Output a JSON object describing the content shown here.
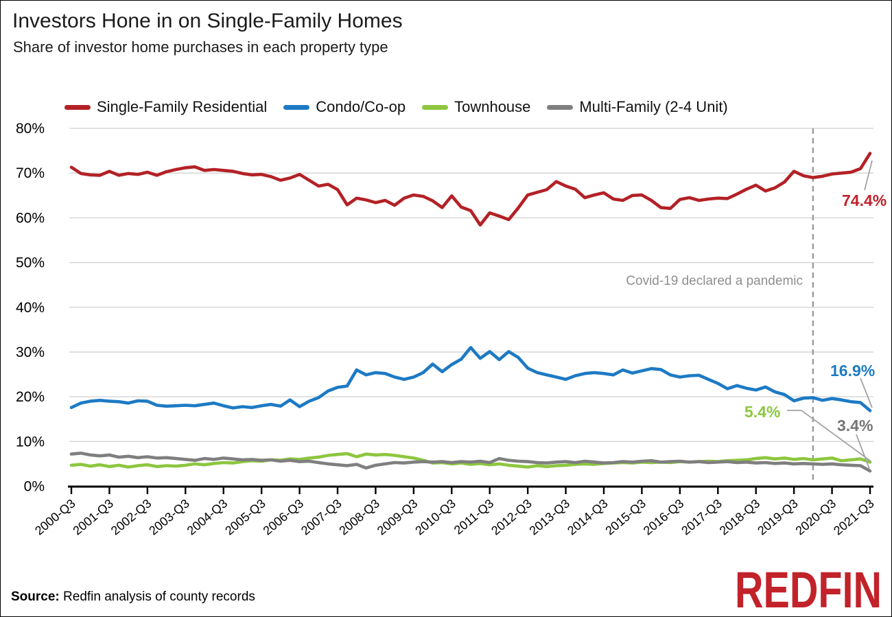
{
  "header": {
    "title": "Investors Hone in on Single-Family Homes",
    "subtitle": "Share of investor home purchases in each property type"
  },
  "chart_data": {
    "type": "line",
    "title": "Investors Hone in on Single-Family Homes",
    "subtitle": "Share of investor home purchases in each property type",
    "x_start": "2000-Q3",
    "x_end": "2021-Q3",
    "points_per_year": 4,
    "x_tick_labels": [
      "2000-Q3",
      "2001-Q3",
      "2002-Q3",
      "2003-Q3",
      "2004-Q3",
      "2005-Q3",
      "2006-Q3",
      "2007-Q3",
      "2008-Q3",
      "2009-Q3",
      "2010-Q3",
      "2011-Q3",
      "2012-Q3",
      "2013-Q3",
      "2014-Q3",
      "2015-Q3",
      "2016-Q3",
      "2017-Q3",
      "2018-Q3",
      "2019-Q3",
      "2020-Q3",
      "2021-Q3"
    ],
    "ylim": [
      0,
      80
    ],
    "y_tick_step": 10,
    "y_tick_labels": [
      "0%",
      "10%",
      "20%",
      "30%",
      "40%",
      "50%",
      "60%",
      "70%",
      "80%"
    ],
    "grid": "horizontal",
    "legend_position": "top",
    "series": [
      {
        "name": "Single-Family Residential",
        "color": "#b32126",
        "end_label": "74.4%",
        "end_label_color": "#c2222a",
        "values": [
          71.3,
          69.9,
          69.6,
          69.5,
          70.4,
          69.5,
          69.9,
          69.7,
          70.2,
          69.5,
          70.3,
          70.8,
          71.2,
          71.4,
          70.6,
          70.8,
          70.6,
          70.4,
          69.9,
          69.6,
          69.7,
          69.2,
          68.4,
          68.9,
          69.7,
          68.4,
          67.1,
          67.5,
          66.3,
          62.9,
          64.4,
          64.0,
          63.4,
          63.9,
          62.8,
          64.4,
          65.1,
          64.8,
          63.8,
          62.3,
          64.9,
          62.4,
          61.6,
          58.4,
          61.1,
          60.4,
          59.6,
          62.2,
          65.1,
          65.7,
          66.3,
          68.1,
          67.1,
          66.4,
          64.5,
          65.1,
          65.6,
          64.2,
          63.9,
          65.0,
          65.1,
          63.9,
          62.3,
          62.1,
          64.1,
          64.5,
          63.9,
          64.2,
          64.4,
          64.3,
          65.3,
          66.4,
          67.3,
          66.0,
          66.7,
          68.0,
          70.4,
          69.4,
          69.0,
          69.3,
          69.8,
          70.0,
          70.2,
          71.0,
          74.4
        ]
      },
      {
        "name": "Condo/Co-op",
        "color": "#1d7ac4",
        "end_label": "16.9%",
        "end_label_color": "#1d7ac4",
        "values": [
          17.6,
          18.6,
          19.0,
          19.2,
          19.0,
          18.9,
          18.6,
          19.1,
          19.0,
          18.1,
          17.9,
          18.0,
          18.1,
          18.0,
          18.3,
          18.6,
          18.0,
          17.5,
          17.8,
          17.6,
          18.0,
          18.3,
          17.9,
          19.3,
          17.8,
          19.0,
          19.8,
          21.3,
          22.1,
          22.4,
          26.0,
          24.9,
          25.4,
          25.2,
          24.4,
          23.9,
          24.4,
          25.4,
          27.3,
          25.6,
          27.2,
          28.4,
          31.0,
          28.6,
          30.1,
          28.3,
          30.1,
          28.8,
          26.4,
          25.4,
          24.9,
          24.4,
          23.9,
          24.7,
          25.2,
          25.4,
          25.2,
          24.9,
          26.0,
          25.3,
          25.8,
          26.3,
          26.1,
          24.9,
          24.4,
          24.7,
          24.8,
          23.9,
          23.0,
          21.8,
          22.5,
          21.9,
          21.5,
          22.2,
          21.1,
          20.5,
          19.1,
          19.7,
          19.8,
          19.2,
          19.6,
          19.3,
          18.9,
          18.7,
          16.9
        ]
      },
      {
        "name": "Townhouse",
        "color": "#8dc63f",
        "end_label": "5.4%",
        "end_label_color": "#8cc740",
        "values": [
          4.7,
          4.9,
          4.5,
          4.8,
          4.4,
          4.7,
          4.3,
          4.6,
          4.8,
          4.4,
          4.6,
          4.5,
          4.7,
          5.0,
          4.8,
          5.1,
          5.3,
          5.2,
          5.5,
          5.7,
          5.6,
          5.9,
          5.8,
          6.1,
          6.0,
          6.3,
          6.5,
          6.9,
          7.1,
          7.3,
          6.6,
          7.2,
          7.0,
          7.1,
          6.9,
          6.6,
          6.3,
          5.8,
          5.2,
          5.3,
          5.0,
          5.2,
          4.9,
          5.1,
          4.8,
          5.0,
          4.7,
          4.5,
          4.3,
          4.6,
          4.4,
          4.6,
          4.7,
          4.9,
          5.0,
          4.9,
          5.1,
          5.2,
          5.3,
          5.2,
          5.4,
          5.3,
          5.4,
          5.3,
          5.5,
          5.4,
          5.5,
          5.6,
          5.5,
          5.7,
          5.8,
          5.9,
          6.2,
          6.4,
          6.1,
          6.3,
          6.0,
          6.2,
          5.9,
          6.1,
          6.3,
          5.7,
          5.9,
          6.1,
          5.4
        ]
      },
      {
        "name": "Multi-Family (2-4 Unit)",
        "color": "#7f7f7f",
        "end_label": "3.4%",
        "end_label_color": "#757575",
        "values": [
          7.2,
          7.4,
          7.0,
          6.8,
          7.0,
          6.5,
          6.7,
          6.4,
          6.6,
          6.3,
          6.4,
          6.2,
          6.0,
          5.8,
          6.2,
          6.0,
          6.3,
          6.1,
          5.9,
          6.0,
          5.8,
          5.9,
          5.6,
          5.8,
          5.5,
          5.6,
          5.3,
          5.0,
          4.8,
          4.6,
          4.9,
          4.1,
          4.7,
          5.0,
          5.3,
          5.2,
          5.4,
          5.5,
          5.4,
          5.5,
          5.3,
          5.5,
          5.4,
          5.6,
          5.3,
          6.2,
          5.8,
          5.6,
          5.5,
          5.3,
          5.2,
          5.4,
          5.5,
          5.3,
          5.6,
          5.4,
          5.2,
          5.3,
          5.5,
          5.4,
          5.6,
          5.7,
          5.4,
          5.5,
          5.6,
          5.4,
          5.5,
          5.3,
          5.4,
          5.5,
          5.3,
          5.4,
          5.2,
          5.3,
          5.1,
          5.2,
          5.0,
          5.1,
          5.0,
          4.9,
          5.0,
          4.8,
          4.7,
          4.6,
          3.4
        ]
      }
    ],
    "annotation": {
      "text": "Covid-19 declared a pandemic",
      "x_category": "2020-Q1",
      "x_index": 78,
      "color": "#8f8f8f",
      "line_style": "dashed"
    }
  },
  "footer": {
    "source_label": "Source:",
    "source_text": " Redfin analysis of county records",
    "logo_text": "REDFIN",
    "logo_color": "#c2222a"
  }
}
